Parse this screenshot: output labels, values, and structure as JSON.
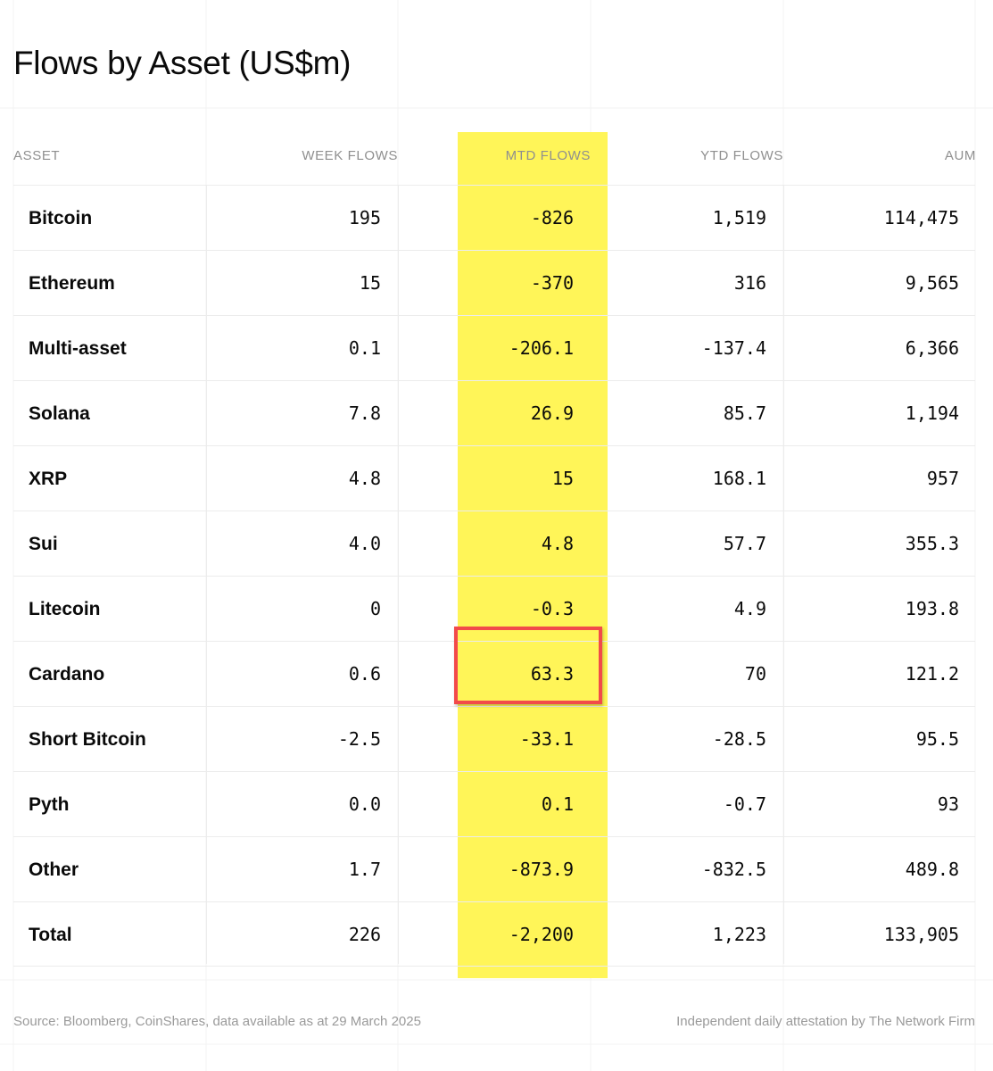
{
  "title": "Flows by Asset (US$m)",
  "columns": [
    "ASSET",
    "WEEK FLOWS",
    "MTD FLOWS",
    "YTD FLOWS",
    "AUM"
  ],
  "rows": [
    {
      "asset": "Bitcoin",
      "week": "195",
      "mtd": "-826",
      "ytd": "1,519",
      "aum": "114,475"
    },
    {
      "asset": "Ethereum",
      "week": "15",
      "mtd": "-370",
      "ytd": "316",
      "aum": "9,565"
    },
    {
      "asset": "Multi-asset",
      "week": "0.1",
      "mtd": "-206.1",
      "ytd": "-137.4",
      "aum": "6,366"
    },
    {
      "asset": "Solana",
      "week": "7.8",
      "mtd": "26.9",
      "ytd": "85.7",
      "aum": "1,194"
    },
    {
      "asset": "XRP",
      "week": "4.8",
      "mtd": "15",
      "ytd": "168.1",
      "aum": "957"
    },
    {
      "asset": "Sui",
      "week": "4.0",
      "mtd": "4.8",
      "ytd": "57.7",
      "aum": "355.3"
    },
    {
      "asset": "Litecoin",
      "week": "0",
      "mtd": "-0.3",
      "ytd": "4.9",
      "aum": "193.8"
    },
    {
      "asset": "Cardano",
      "week": "0.6",
      "mtd": "63.3",
      "ytd": "70",
      "aum": "121.2"
    },
    {
      "asset": "Short Bitcoin",
      "week": "-2.5",
      "mtd": "-33.1",
      "ytd": "-28.5",
      "aum": "95.5"
    },
    {
      "asset": "Pyth",
      "week": "0.0",
      "mtd": "0.1",
      "ytd": "-0.7",
      "aum": "93"
    },
    {
      "asset": "Other",
      "week": "1.7",
      "mtd": "-873.9",
      "ytd": "-832.5",
      "aum": "489.8"
    },
    {
      "asset": "Total",
      "week": "226",
      "mtd": "-2,200",
      "ytd": "1,223",
      "aum": "133,905"
    }
  ],
  "highlight": {
    "column": "MTD FLOWS",
    "column_color": "#fff558",
    "boxed_row": "Cardano",
    "box_color": "#f24a4a"
  },
  "footer": {
    "source": "Source: Bloomberg, CoinShares, data available as at 29 March 2025",
    "attestation": "Independent daily attestation by The Network Firm"
  },
  "chart_data": {
    "type": "table",
    "title": "Flows by Asset (US$m)",
    "columns": [
      "ASSET",
      "WEEK FLOWS",
      "MTD FLOWS",
      "YTD FLOWS",
      "AUM"
    ],
    "rows": [
      [
        "Bitcoin",
        195,
        -826,
        1519,
        114475
      ],
      [
        "Ethereum",
        15,
        -370,
        316,
        9565
      ],
      [
        "Multi-asset",
        0.1,
        -206.1,
        -137.4,
        6366
      ],
      [
        "Solana",
        7.8,
        26.9,
        85.7,
        1194
      ],
      [
        "XRP",
        4.8,
        15,
        168.1,
        957
      ],
      [
        "Sui",
        4.0,
        4.8,
        57.7,
        355.3
      ],
      [
        "Litecoin",
        0,
        -0.3,
        4.9,
        193.8
      ],
      [
        "Cardano",
        0.6,
        63.3,
        70,
        121.2
      ],
      [
        "Short Bitcoin",
        -2.5,
        -33.1,
        -28.5,
        95.5
      ],
      [
        "Pyth",
        0.0,
        0.1,
        -0.7,
        93
      ],
      [
        "Other",
        1.7,
        -873.9,
        -832.5,
        489.8
      ],
      [
        "Total",
        226,
        -2200,
        1223,
        133905
      ]
    ]
  }
}
